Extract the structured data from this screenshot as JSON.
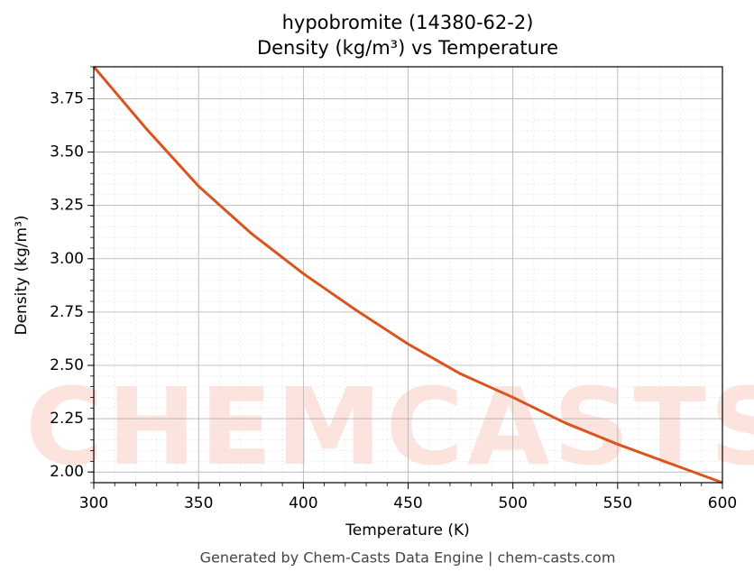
{
  "chart_data": {
    "type": "line",
    "title": "hypobromite (14380-62-2)",
    "subtitle": "Density (kg/m³) vs Temperature",
    "x_label": "Temperature (K)",
    "y_label": "Density (kg/m³)",
    "footer": "Generated by Chem-Casts Data Engine | chem-casts.com",
    "watermark": "CHEMCASTS",
    "x": [
      300,
      325,
      350,
      375,
      400,
      425,
      450,
      475,
      500,
      525,
      550,
      575,
      600
    ],
    "series": [
      {
        "name": "Density",
        "color": "#d9541e",
        "values": [
          3.9,
          3.61,
          3.34,
          3.12,
          2.93,
          2.76,
          2.6,
          2.46,
          2.35,
          2.23,
          2.13,
          2.04,
          1.95
        ]
      }
    ],
    "xlim": [
      300,
      600
    ],
    "xticks": [
      300,
      350,
      400,
      450,
      500,
      550,
      600
    ],
    "ylim": [
      1.95,
      3.9
    ],
    "yticks": [
      {
        "value": 2,
        "label": "2.00"
      },
      {
        "value": 2.25,
        "label": "2.25"
      },
      {
        "value": 2.5,
        "label": "2.50"
      },
      {
        "value": 2.75,
        "label": "2.75"
      },
      {
        "value": 3,
        "label": "3.00"
      },
      {
        "value": 3.25,
        "label": "3.25"
      },
      {
        "value": 3.5,
        "label": "3.50"
      },
      {
        "value": 3.75,
        "label": "3.75"
      }
    ],
    "grid": true
  }
}
